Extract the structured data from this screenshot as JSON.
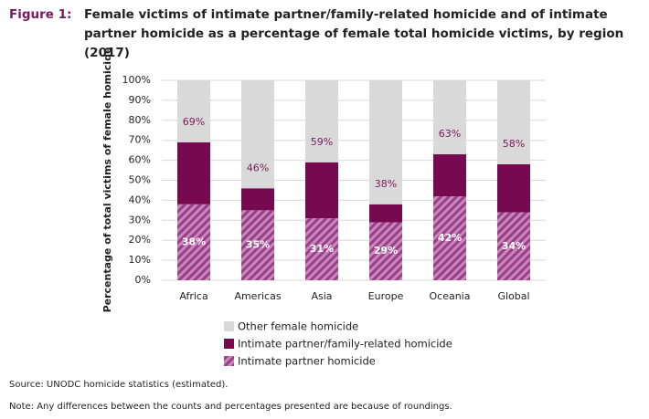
{
  "header": {
    "label": "Figure 1:",
    "title": "Female victims of intimate partner/family-related homicide and of intimate partner homicide as a percentage of female total homicide victims, by region (2017)"
  },
  "chart_data": {
    "type": "bar",
    "stacked": true,
    "ylabel": "Percentage of total victims of female homicide",
    "categories": [
      "Africa",
      "Americas",
      "Asia",
      "Europe",
      "Oceania",
      "Global"
    ],
    "series": [
      {
        "name": "Intimate partner homicide",
        "color": "#9c3d8c",
        "hatch": true,
        "values": [
          38,
          35,
          31,
          29,
          42,
          34
        ],
        "value_labels": [
          "38%",
          "35%",
          "31%",
          "29%",
          "42%",
          "34%"
        ]
      },
      {
        "name": "Intimate partner/family-related homicide",
        "color": "#76094f",
        "values": [
          31,
          11,
          28,
          9,
          21,
          24
        ]
      },
      {
        "name": "Other female homicide",
        "color": "#d9d9d9",
        "values": [
          31,
          54,
          41,
          62,
          37,
          42
        ]
      }
    ],
    "total_labels": {
      "color": "#7a1a5e",
      "values": [
        69,
        46,
        59,
        38,
        63,
        58
      ],
      "value_labels": [
        "69%",
        "46%",
        "59%",
        "38%",
        "63%",
        "58%"
      ]
    },
    "ylim": [
      0,
      100
    ],
    "yticks": [
      {
        "value": 0,
        "label": "0%"
      },
      {
        "value": 10,
        "label": "10%"
      },
      {
        "value": 20,
        "label": "20%"
      },
      {
        "value": 30,
        "label": "30%"
      },
      {
        "value": 40,
        "label": "40%"
      },
      {
        "value": 50,
        "label": "50%"
      },
      {
        "value": 60,
        "label": "60%"
      },
      {
        "value": 70,
        "label": "70%"
      },
      {
        "value": 80,
        "label": "80%"
      },
      {
        "value": 90,
        "label": "90%"
      },
      {
        "value": 100,
        "label": "100%"
      }
    ],
    "grid": true
  },
  "footer": {
    "source": "Source: UNODC homicide statistics (estimated).",
    "note": "Note: Any differences between the counts and percentages presented are because of roundings."
  }
}
